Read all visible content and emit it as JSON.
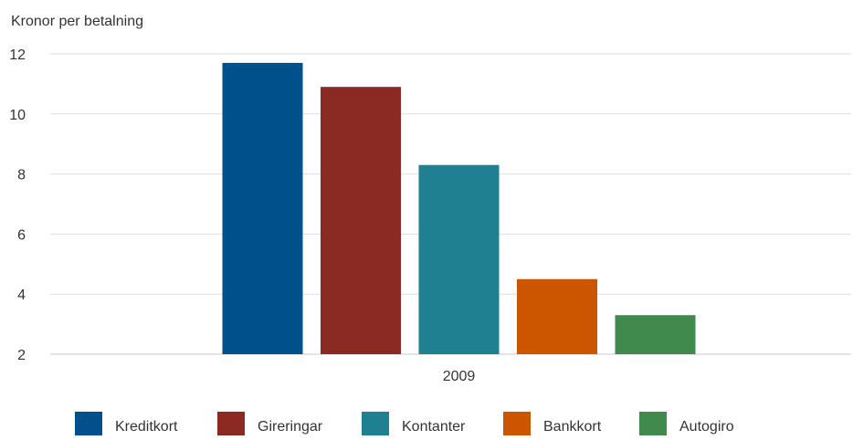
{
  "chart_data": {
    "type": "bar",
    "ylabel": "Kronor per betalning",
    "xlabel": "",
    "categories": [
      "2009"
    ],
    "ylim": [
      2,
      12
    ],
    "yticks": [
      2,
      4,
      6,
      8,
      10,
      12
    ],
    "grid": true,
    "legend_position": "bottom",
    "series": [
      {
        "name": "Kreditkort",
        "values": [
          11.7
        ],
        "color": "#00508c"
      },
      {
        "name": "Gireringar",
        "values": [
          10.9
        ],
        "color": "#8a2a22"
      },
      {
        "name": "Kontanter",
        "values": [
          8.3
        ],
        "color": "#1e8090"
      },
      {
        "name": "Bankkort",
        "values": [
          4.5
        ],
        "color": "#cc5500"
      },
      {
        "name": "Autogiro",
        "values": [
          3.3
        ],
        "color": "#3f8a4c"
      }
    ]
  }
}
